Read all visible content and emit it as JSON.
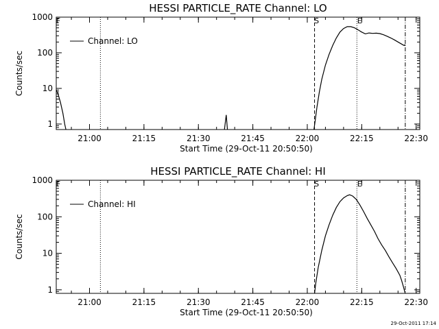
{
  "footer_stamp": "29-Oct-2011 17:14",
  "chart_data": [
    {
      "type": "line",
      "title": "HESSI PARTICLE_RATE Channel: LO",
      "xlabel": "Start Time (29-Oct-11 20:50:50)",
      "ylabel": "Counts/sec",
      "yscale": "log",
      "ylim": [
        0.7,
        1000
      ],
      "xlim": [
        "20:50:50",
        "22:31:00"
      ],
      "x_ticks": [
        "21:00",
        "21:15",
        "21:30",
        "21:45",
        "22:00",
        "22:15",
        "22:30"
      ],
      "y_ticks": [
        "1",
        "10",
        "100",
        "1000"
      ],
      "legend": {
        "label": "Channel: LO",
        "position": "top-left"
      },
      "markers": {
        "S": "22:02:00",
        "E": "22:13:40",
        "end": "22:27:00",
        "dotted_start": "21:03:00",
        "F": "20:51:00"
      },
      "series": [
        {
          "name": "Channel: LO",
          "points": [
            [
              "20:50:50",
              9.0
            ],
            [
              "20:51:20",
              7.0
            ],
            [
              "20:52:00",
              4.0
            ],
            [
              "20:52:40",
              2.0
            ],
            [
              "20:53:10",
              1.0
            ],
            [
              "20:53:30",
              0.7
            ]
          ]
        },
        {
          "name": "Channel: LO",
          "points": [
            [
              "21:37:10",
              0.7
            ],
            [
              "21:37:40",
              1.8
            ],
            [
              "21:38:00",
              0.7
            ]
          ]
        },
        {
          "name": "Channel: LO",
          "points": [
            [
              "22:01:50",
              0.7
            ],
            [
              "22:02:10",
              1.2
            ],
            [
              "22:02:40",
              3.0
            ],
            [
              "22:03:20",
              8.0
            ],
            [
              "22:04:00",
              18.0
            ],
            [
              "22:05:00",
              45.0
            ],
            [
              "22:06:00",
              90.0
            ],
            [
              "22:07:00",
              160.0
            ],
            [
              "22:08:00",
              260.0
            ],
            [
              "22:09:00",
              380.0
            ],
            [
              "22:10:00",
              480.0
            ],
            [
              "22:11:00",
              540.0
            ],
            [
              "22:12:00",
              540.0
            ],
            [
              "22:13:00",
              500.0
            ],
            [
              "22:14:00",
              440.0
            ],
            [
              "22:15:00",
              380.0
            ],
            [
              "22:16:00",
              340.0
            ],
            [
              "22:17:00",
              360.0
            ],
            [
              "22:18:00",
              350.0
            ],
            [
              "22:19:00",
              355.0
            ],
            [
              "22:20:00",
              345.0
            ],
            [
              "22:21:00",
              320.0
            ],
            [
              "22:22:00",
              290.0
            ],
            [
              "22:23:00",
              260.0
            ],
            [
              "22:24:00",
              230.0
            ],
            [
              "22:25:00",
              200.0
            ],
            [
              "22:26:00",
              175.0
            ],
            [
              "22:26:40",
              160.0
            ],
            [
              "22:27:00",
              170.0
            ]
          ]
        }
      ]
    },
    {
      "type": "line",
      "title": "HESSI PARTICLE_RATE Channel: HI",
      "xlabel": "Start Time (29-Oct-11 20:50:50)",
      "ylabel": "Counts/sec",
      "yscale": "log",
      "ylim": [
        0.8,
        1000
      ],
      "xlim": [
        "20:50:50",
        "22:31:00"
      ],
      "x_ticks": [
        "21:00",
        "21:15",
        "21:30",
        "21:45",
        "22:00",
        "22:15",
        "22:30"
      ],
      "y_ticks": [
        "1",
        "10",
        "100",
        "1000"
      ],
      "legend": {
        "label": "Channel: HI",
        "position": "top-left"
      },
      "markers": {
        "S": "22:02:00",
        "E": "22:13:40",
        "end": "22:27:00",
        "dotted_start": "21:03:00",
        "F": "20:51:00"
      },
      "series": [
        {
          "name": "Channel: HI",
          "points": [
            [
              "22:02:00",
              0.8
            ],
            [
              "22:02:20",
              1.5
            ],
            [
              "22:03:00",
              4.0
            ],
            [
              "22:04:00",
              12.0
            ],
            [
              "22:05:00",
              30.0
            ],
            [
              "22:06:00",
              60.0
            ],
            [
              "22:07:00",
              110.0
            ],
            [
              "22:08:00",
              180.0
            ],
            [
              "22:09:00",
              260.0
            ],
            [
              "22:10:00",
              330.0
            ],
            [
              "22:11:00",
              380.0
            ],
            [
              "22:11:40",
              400.0
            ],
            [
              "22:12:30",
              370.0
            ],
            [
              "22:13:30",
              300.0
            ],
            [
              "22:14:30",
              210.0
            ],
            [
              "22:15:30",
              140.0
            ],
            [
              "22:16:30",
              90.0
            ],
            [
              "22:17:30",
              60.0
            ],
            [
              "22:18:30",
              40.0
            ],
            [
              "22:19:30",
              25.0
            ],
            [
              "22:20:30",
              17.0
            ],
            [
              "22:21:30",
              12.0
            ],
            [
              "22:22:30",
              8.0
            ],
            [
              "22:23:30",
              5.5
            ],
            [
              "22:24:30",
              3.8
            ],
            [
              "22:25:30",
              2.5
            ],
            [
              "22:26:00",
              1.8
            ],
            [
              "22:26:30",
              1.2
            ],
            [
              "22:26:50",
              0.9
            ],
            [
              "22:27:00",
              0.8
            ]
          ]
        }
      ]
    }
  ]
}
